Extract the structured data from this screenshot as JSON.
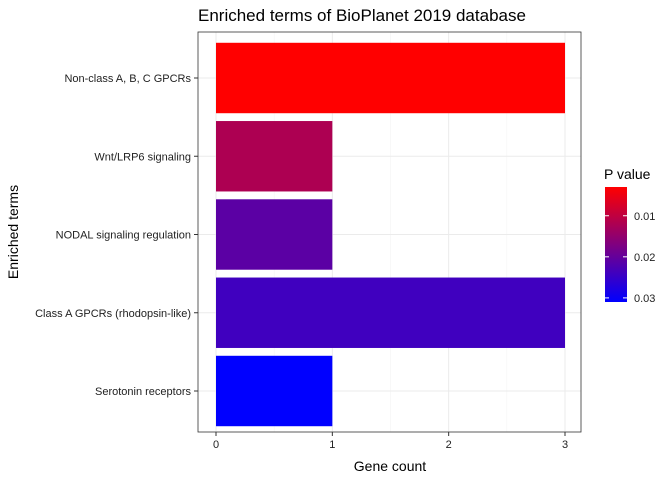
{
  "chart_data": {
    "type": "bar",
    "orientation": "horizontal",
    "title": "Enriched terms of BioPlanet 2019 database",
    "xlabel": "Gene count",
    "ylabel": "Enriched terms",
    "xlim": [
      0,
      3
    ],
    "x_ticks": [
      "0",
      "1",
      "2",
      "3"
    ],
    "grid": true,
    "categories": [
      "Non-class A, B, C GPCRs",
      "Wnt/LRP6 signaling",
      "NODAL signaling regulation",
      "Class A GPCRs (rhodopsin-like)",
      "Serotonin receptors"
    ],
    "values": [
      3,
      1,
      1,
      3,
      1
    ],
    "p_values": [
      0.003,
      0.012,
      0.021,
      0.024,
      0.031
    ],
    "legend": {
      "title": "P value",
      "position": "right",
      "ticks": [
        "0.01",
        "0.02",
        "0.03"
      ],
      "tick_values": [
        0.01,
        0.02,
        0.03
      ],
      "range": [
        0.003,
        0.031
      ],
      "color_low": "#ff0000",
      "color_high": "#0000ff"
    }
  }
}
